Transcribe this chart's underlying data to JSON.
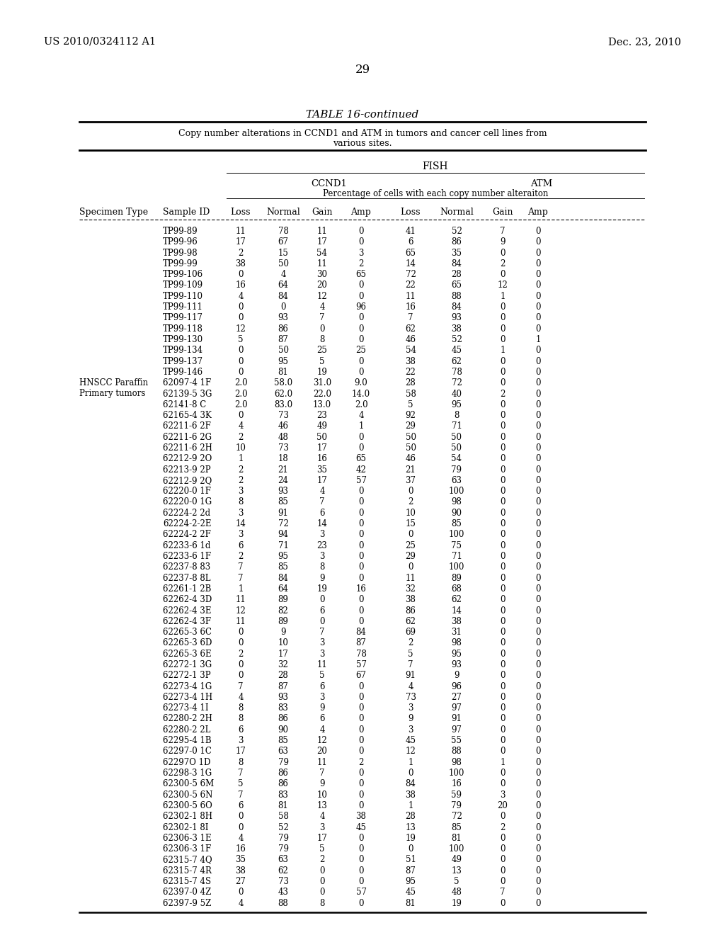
{
  "header_patent": "US 2010/0324112 A1",
  "header_date": "Dec. 23, 2010",
  "page_number": "29",
  "table_title": "TABLE 16-continued",
  "table_subtitle1": "Copy number alterations in CCND1 and ATM in tumors and cancer cell lines from",
  "table_subtitle2": "various sites.",
  "fish_label": "FISH",
  "ccnd1_label": "CCND1",
  "atm_label": "ATM",
  "pct_label": "Percentage of cells with each copy number alteraiton",
  "col_headers": [
    "Specimen Type",
    "Sample ID",
    "Loss",
    "Normal",
    "Gain",
    "Amp",
    "Loss",
    "Normal",
    "Gain",
    "Amp"
  ],
  "rows": [
    [
      "",
      "TP99-89",
      "11",
      "78",
      "11",
      "0",
      "41",
      "52",
      "7",
      "0"
    ],
    [
      "",
      "TP99-96",
      "17",
      "67",
      "17",
      "0",
      "6",
      "86",
      "9",
      "0"
    ],
    [
      "",
      "TP99-98",
      "2",
      "15",
      "54",
      "3",
      "65",
      "35",
      "0",
      "0"
    ],
    [
      "",
      "TP99-99",
      "38",
      "50",
      "11",
      "2",
      "14",
      "84",
      "2",
      "0"
    ],
    [
      "",
      "TP99-106",
      "0",
      "4",
      "30",
      "65",
      "72",
      "28",
      "0",
      "0"
    ],
    [
      "",
      "TP99-109",
      "16",
      "64",
      "20",
      "0",
      "22",
      "65",
      "12",
      "0"
    ],
    [
      "",
      "TP99-110",
      "4",
      "84",
      "12",
      "0",
      "11",
      "88",
      "1",
      "0"
    ],
    [
      "",
      "TP99-111",
      "0",
      "0",
      "4",
      "96",
      "16",
      "84",
      "0",
      "0"
    ],
    [
      "",
      "TP99-117",
      "0",
      "93",
      "7",
      "0",
      "7",
      "93",
      "0",
      "0"
    ],
    [
      "",
      "TP99-118",
      "12",
      "86",
      "0",
      "0",
      "62",
      "38",
      "0",
      "0"
    ],
    [
      "",
      "TP99-130",
      "5",
      "87",
      "8",
      "0",
      "46",
      "52",
      "0",
      "1"
    ],
    [
      "",
      "TP99-134",
      "0",
      "50",
      "25",
      "25",
      "54",
      "45",
      "1",
      "0"
    ],
    [
      "",
      "TP99-137",
      "0",
      "95",
      "5",
      "0",
      "38",
      "62",
      "0",
      "0"
    ],
    [
      "",
      "TP99-146",
      "0",
      "81",
      "19",
      "0",
      "22",
      "78",
      "0",
      "0"
    ],
    [
      "HNSCC Paraffin",
      "62097-4 1F",
      "2.0",
      "58.0",
      "31.0",
      "9.0",
      "28",
      "72",
      "0",
      "0"
    ],
    [
      "Primary tumors",
      "62139-5 3G",
      "2.0",
      "62.0",
      "22.0",
      "14.0",
      "58",
      "40",
      "2",
      "0"
    ],
    [
      "",
      "62141-8 C",
      "2.0",
      "83.0",
      "13.0",
      "2.0",
      "5",
      "95",
      "0",
      "0"
    ],
    [
      "",
      "62165-4 3K",
      "0",
      "73",
      "23",
      "4",
      "92",
      "8",
      "0",
      "0"
    ],
    [
      "",
      "62211-6 2F",
      "4",
      "46",
      "49",
      "1",
      "29",
      "71",
      "0",
      "0"
    ],
    [
      "",
      "62211-6 2G",
      "2",
      "48",
      "50",
      "0",
      "50",
      "50",
      "0",
      "0"
    ],
    [
      "",
      "62211-6 2H",
      "10",
      "73",
      "17",
      "0",
      "50",
      "50",
      "0",
      "0"
    ],
    [
      "",
      "62212-9 2O",
      "1",
      "18",
      "16",
      "65",
      "46",
      "54",
      "0",
      "0"
    ],
    [
      "",
      "62213-9 2P",
      "2",
      "21",
      "35",
      "42",
      "21",
      "79",
      "0",
      "0"
    ],
    [
      "",
      "62212-9 2Q",
      "2",
      "24",
      "17",
      "57",
      "37",
      "63",
      "0",
      "0"
    ],
    [
      "",
      "62220-0 1F",
      "3",
      "93",
      "4",
      "0",
      "0",
      "100",
      "0",
      "0"
    ],
    [
      "",
      "62220-0 1G",
      "8",
      "85",
      "7",
      "0",
      "2",
      "98",
      "0",
      "0"
    ],
    [
      "",
      "62224-2 2d",
      "3",
      "91",
      "6",
      "0",
      "10",
      "90",
      "0",
      "0"
    ],
    [
      "",
      "62224-2-2E",
      "14",
      "72",
      "14",
      "0",
      "15",
      "85",
      "0",
      "0"
    ],
    [
      "",
      "62224-2 2F",
      "3",
      "94",
      "3",
      "0",
      "0",
      "100",
      "0",
      "0"
    ],
    [
      "",
      "62233-6 1d",
      "6",
      "71",
      "23",
      "0",
      "25",
      "75",
      "0",
      "0"
    ],
    [
      "",
      "62233-6 1F",
      "2",
      "95",
      "3",
      "0",
      "29",
      "71",
      "0",
      "0"
    ],
    [
      "",
      "62237-8 83",
      "7",
      "85",
      "8",
      "0",
      "0",
      "100",
      "0",
      "0"
    ],
    [
      "",
      "62237-8 8L",
      "7",
      "84",
      "9",
      "0",
      "11",
      "89",
      "0",
      "0"
    ],
    [
      "",
      "62261-1 2B",
      "1",
      "64",
      "19",
      "16",
      "32",
      "68",
      "0",
      "0"
    ],
    [
      "",
      "62262-4 3D",
      "11",
      "89",
      "0",
      "0",
      "38",
      "62",
      "0",
      "0"
    ],
    [
      "",
      "62262-4 3E",
      "12",
      "82",
      "6",
      "0",
      "86",
      "14",
      "0",
      "0"
    ],
    [
      "",
      "62262-4 3F",
      "11",
      "89",
      "0",
      "0",
      "62",
      "38",
      "0",
      "0"
    ],
    [
      "",
      "62265-3 6C",
      "0",
      "9",
      "7",
      "84",
      "69",
      "31",
      "0",
      "0"
    ],
    [
      "",
      "62265-3 6D",
      "0",
      "10",
      "3",
      "87",
      "2",
      "98",
      "0",
      "0"
    ],
    [
      "",
      "62265-3 6E",
      "2",
      "17",
      "3",
      "78",
      "5",
      "95",
      "0",
      "0"
    ],
    [
      "",
      "62272-1 3G",
      "0",
      "32",
      "11",
      "57",
      "7",
      "93",
      "0",
      "0"
    ],
    [
      "",
      "62272-1 3P",
      "0",
      "28",
      "5",
      "67",
      "91",
      "9",
      "0",
      "0"
    ],
    [
      "",
      "62273-4 1G",
      "7",
      "87",
      "6",
      "0",
      "4",
      "96",
      "0",
      "0"
    ],
    [
      "",
      "62273-4 1H",
      "4",
      "93",
      "3",
      "0",
      "73",
      "27",
      "0",
      "0"
    ],
    [
      "",
      "62273-4 1I",
      "8",
      "83",
      "9",
      "0",
      "3",
      "97",
      "0",
      "0"
    ],
    [
      "",
      "62280-2 2H",
      "8",
      "86",
      "6",
      "0",
      "9",
      "91",
      "0",
      "0"
    ],
    [
      "",
      "62280-2 2L",
      "6",
      "90",
      "4",
      "0",
      "3",
      "97",
      "0",
      "0"
    ],
    [
      "",
      "62295-4 1B",
      "3",
      "85",
      "12",
      "0",
      "45",
      "55",
      "0",
      "0"
    ],
    [
      "",
      "62297-0 1C",
      "17",
      "63",
      "20",
      "0",
      "12",
      "88",
      "0",
      "0"
    ],
    [
      "",
      "62297O 1D",
      "8",
      "79",
      "11",
      "2",
      "1",
      "98",
      "1",
      "0"
    ],
    [
      "",
      "62298-3 1G",
      "7",
      "86",
      "7",
      "0",
      "0",
      "100",
      "0",
      "0"
    ],
    [
      "",
      "62300-5 6M",
      "5",
      "86",
      "9",
      "0",
      "84",
      "16",
      "0",
      "0"
    ],
    [
      "",
      "62300-5 6N",
      "7",
      "83",
      "10",
      "0",
      "38",
      "59",
      "3",
      "0"
    ],
    [
      "",
      "62300-5 6O",
      "6",
      "81",
      "13",
      "0",
      "1",
      "79",
      "20",
      "0"
    ],
    [
      "",
      "62302-1 8H",
      "0",
      "58",
      "4",
      "38",
      "28",
      "72",
      "0",
      "0"
    ],
    [
      "",
      "62302-1 8I",
      "0",
      "52",
      "3",
      "45",
      "13",
      "85",
      "2",
      "0"
    ],
    [
      "",
      "62306-3 1E",
      "4",
      "79",
      "17",
      "0",
      "19",
      "81",
      "0",
      "0"
    ],
    [
      "",
      "62306-3 1F",
      "16",
      "79",
      "5",
      "0",
      "0",
      "100",
      "0",
      "0"
    ],
    [
      "",
      "62315-7 4Q",
      "35",
      "63",
      "2",
      "0",
      "51",
      "49",
      "0",
      "0"
    ],
    [
      "",
      "62315-7 4R",
      "38",
      "62",
      "0",
      "0",
      "87",
      "13",
      "0",
      "0"
    ],
    [
      "",
      "62315-7 4S",
      "27",
      "73",
      "0",
      "0",
      "95",
      "5",
      "0",
      "0"
    ],
    [
      "",
      "62397-0 4Z",
      "0",
      "43",
      "0",
      "57",
      "45",
      "48",
      "7",
      "0"
    ],
    [
      "",
      "62397-9 5Z",
      "4",
      "88",
      "8",
      "0",
      "81",
      "19",
      "0",
      "0"
    ]
  ]
}
